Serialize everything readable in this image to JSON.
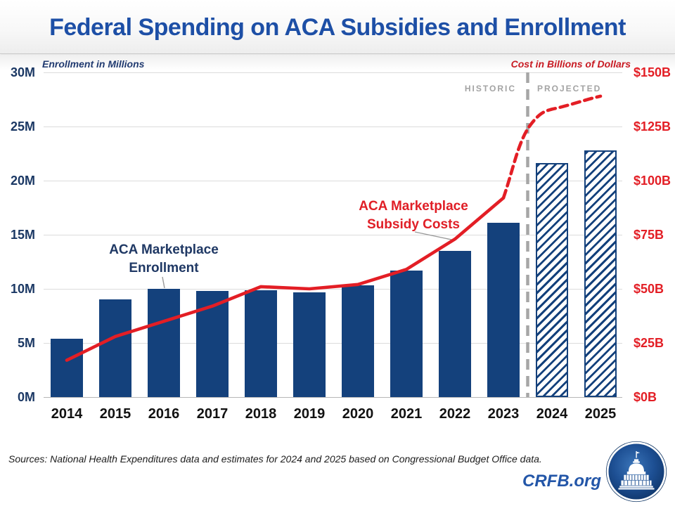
{
  "header": {
    "title": "Federal Spending on ACA Subsidies and Enrollment"
  },
  "chart_data": {
    "type": "bar",
    "subtype": "bar+line combo, dual axis",
    "categories": [
      "2014",
      "2015",
      "2016",
      "2017",
      "2018",
      "2019",
      "2020",
      "2021",
      "2022",
      "2023",
      "2024",
      "2025"
    ],
    "series": [
      {
        "name": "ACA Marketplace Enrollment",
        "type": "bar",
        "axis": "left",
        "unit": "millions",
        "values": [
          5.4,
          9.0,
          10.0,
          9.8,
          9.9,
          9.7,
          10.3,
          11.7,
          13.5,
          16.1,
          21.6,
          22.8
        ],
        "projected_years": [
          "2024",
          "2025"
        ]
      },
      {
        "name": "ACA Marketplace Subsidy Costs",
        "type": "line",
        "axis": "right",
        "unit": "billions of dollars",
        "values": [
          17,
          28,
          35,
          42,
          51,
          50,
          52,
          59,
          73,
          92,
          133,
          139
        ],
        "projected_years": [
          "2024",
          "2025"
        ]
      }
    ],
    "left_axis": {
      "title": "Enrollment in Millions",
      "min": 0,
      "max": 30,
      "tick_labels": [
        "30M",
        "25M",
        "20M",
        "15M",
        "10M",
        "5M",
        "0M"
      ]
    },
    "right_axis": {
      "title": "Cost in Billions of Dollars",
      "min": 0,
      "max": 150,
      "tick_labels": [
        "$150B",
        "$125B",
        "$100B",
        "$75B",
        "$50B",
        "$25B",
        "$0B"
      ]
    },
    "divider": {
      "historic_label": "HISTORIC",
      "projected_label": "PROJECTED",
      "position": "between 2023 and 2024"
    },
    "annotations": [
      {
        "id": "enrollment-callout",
        "line1": "ACA Marketplace",
        "line2": "Enrollment"
      },
      {
        "id": "subsidy-callout",
        "line1": "ACA Marketplace",
        "line2": "Subsidy Costs"
      }
    ],
    "grid": "horizontal gridlines on",
    "legend": "none (direct series labels)"
  },
  "footer": {
    "sources": "Sources: National Health Expenditures data and estimates for 2024 and 2025 based on Congressional Budget Office data.",
    "brand": "CRFB.org"
  },
  "colors": {
    "bar_navy": "#14417c",
    "line_red": "#e31e25",
    "title_blue": "#1d4fa6",
    "left_axis_navy": "#1f3864",
    "right_axis_red": "#c81a22",
    "muted_gray": "#a3a3a3",
    "gridline_gray": "#dcdcdc"
  }
}
